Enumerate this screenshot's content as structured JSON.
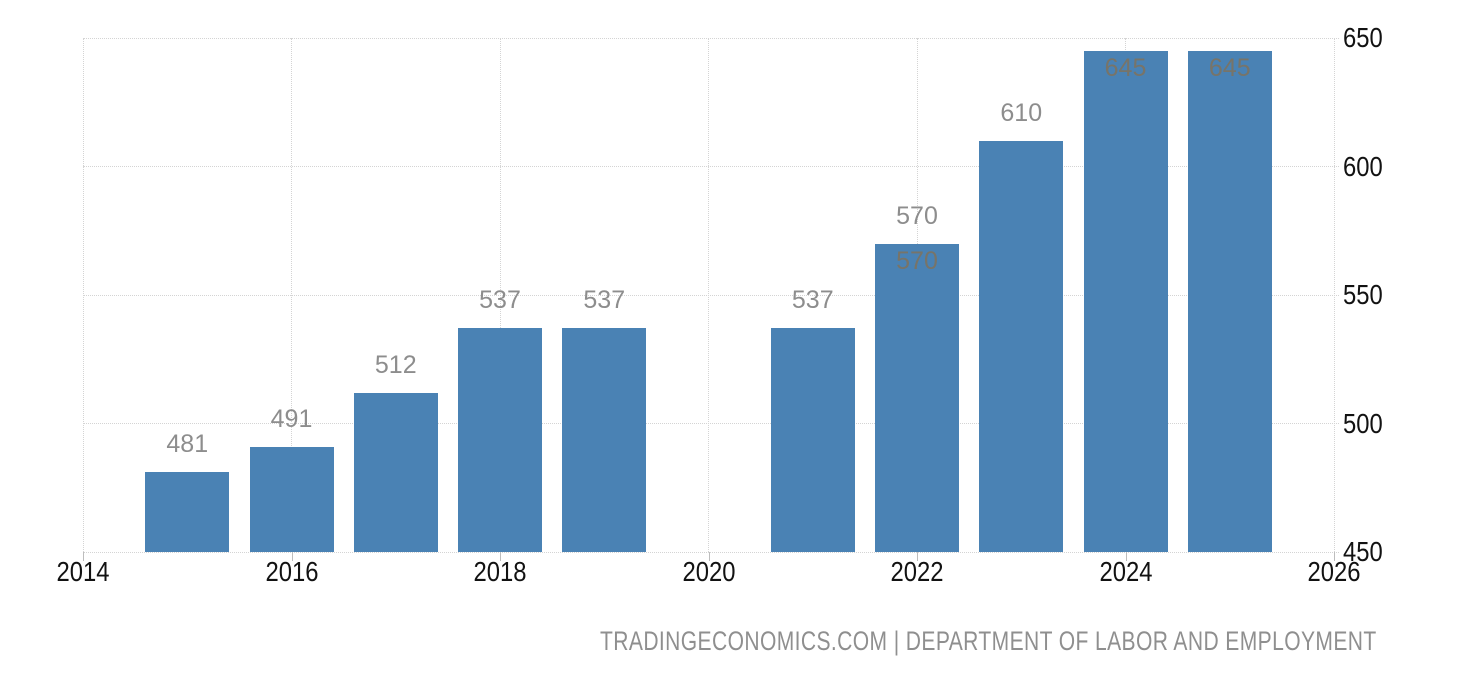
{
  "chart_data": {
    "type": "bar",
    "title": "",
    "legend": "none",
    "grid": "dotted",
    "xlim": [
      2014,
      2026
    ],
    "ylim": [
      450,
      650
    ],
    "x_ticks": [
      "2014",
      "2016",
      "2018",
      "2020",
      "2022",
      "2024",
      "2026"
    ],
    "y_ticks": [
      "450",
      "500",
      "550",
      "600",
      "650"
    ],
    "categories": [
      2015,
      2016,
      2017,
      2018,
      2019,
      2021,
      2022,
      2023,
      2024,
      2025
    ],
    "values": [
      481,
      491,
      512,
      537,
      537,
      537,
      570,
      610,
      645,
      645
    ],
    "missing_years": [
      2020
    ],
    "bars": [
      {
        "year": 2015,
        "value": 481,
        "label_above": "481"
      },
      {
        "year": 2016,
        "value": 491,
        "label_above": "491"
      },
      {
        "year": 2017,
        "value": 512,
        "label_above": "512"
      },
      {
        "year": 2018,
        "value": 537,
        "label_above": "537"
      },
      {
        "year": 2019,
        "value": 537,
        "label_above": "537"
      },
      {
        "year": 2021,
        "value": 537,
        "label_above": "537"
      },
      {
        "year": 2022,
        "value": 570,
        "label_above": "570",
        "label_inside": "570"
      },
      {
        "year": 2023,
        "value": 610,
        "label_above": "610"
      },
      {
        "year": 2024,
        "value": 645,
        "label_inside": "645"
      },
      {
        "year": 2025,
        "value": 645,
        "label_inside": "645"
      }
    ],
    "colors": {
      "bar": "#4a82b4",
      "label_above": "#8d8d8d",
      "label_inside": "#777469",
      "gridline": "#d4d4d4",
      "axis_text": "#121212",
      "attribution_text": "#8f8f8f",
      "background": "#ffffff"
    }
  },
  "attribution": {
    "text": "TRADINGECONOMICS.COM | DEPARTMENT OF LABOR AND EMPLOYMENT"
  }
}
